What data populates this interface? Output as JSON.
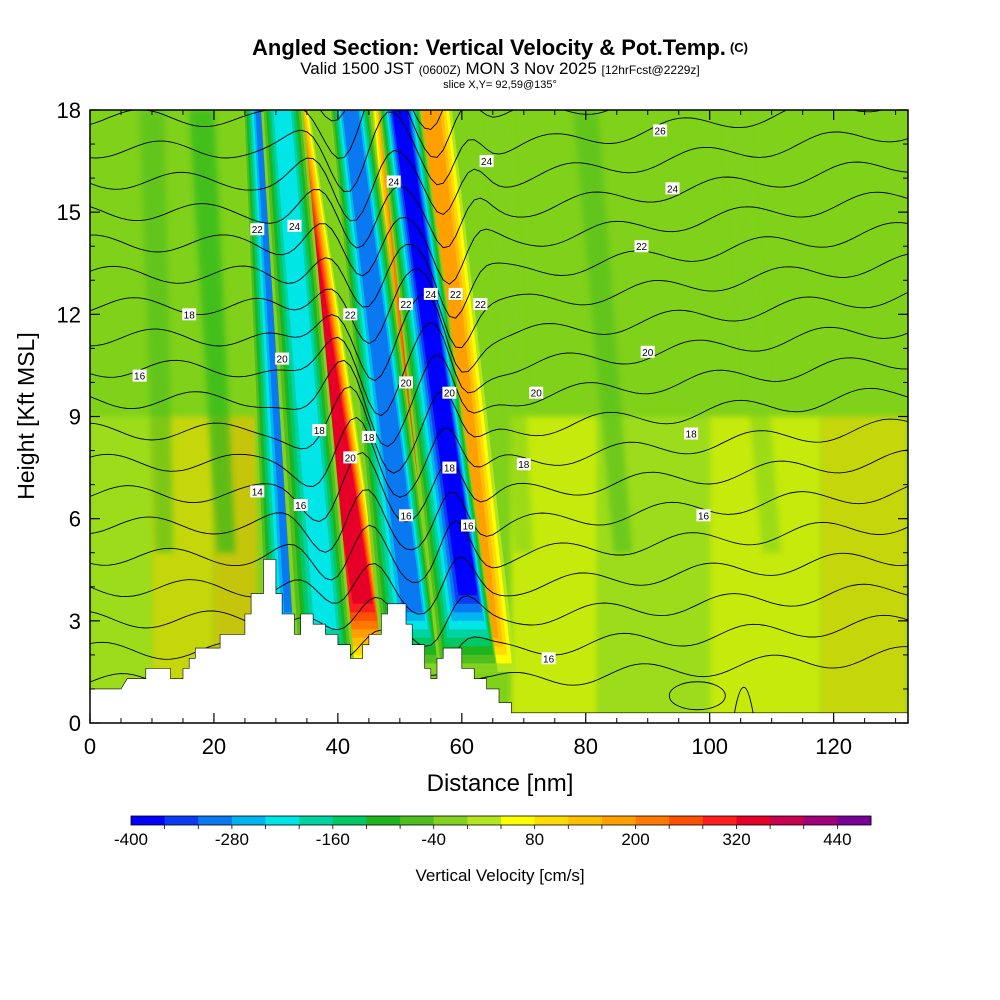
{
  "title": {
    "main": "Angled Section: Vertical Velocity & Pot.Temp.",
    "main_suffix": "(C)",
    "valid_prefix": "Valid 1500 JST",
    "valid_zulu": "(0600Z)",
    "valid_date": "MON 3 Nov 2025",
    "forecast": "[12hrFcst@2229z]",
    "slice": "slice X,Y= 92,59@135°"
  },
  "colors": {
    "terrain": "#ffffff",
    "contour": "#000000",
    "frame": "#000000",
    "background_field": "#7fd11a"
  },
  "chart_data": {
    "type": "heatmap",
    "title": "Angled Section: Vertical Velocity & Pot.Temp.",
    "xlabel": "Distance [nm]",
    "ylabel": "Height [Kft MSL]",
    "xlim": [
      0,
      132
    ],
    "ylim": [
      0,
      18
    ],
    "x_ticks": [
      0,
      20,
      40,
      60,
      80,
      100,
      120
    ],
    "y_ticks": [
      0,
      3,
      6,
      9,
      12,
      15,
      18
    ],
    "colorbar": {
      "label": "Vertical Velocity [cm/s]",
      "min": -400,
      "max": 500,
      "step": 40,
      "tick_labels": [
        "-400",
        "-280",
        "-160",
        "-40",
        "80",
        "200",
        "320",
        "440"
      ],
      "colors": [
        "#0000ff",
        "#0a3cf5",
        "#0a78f0",
        "#00b4f0",
        "#00e6e6",
        "#00d2a0",
        "#00c864",
        "#1eb41e",
        "#50be1e",
        "#82d21e",
        "#b4e61e",
        "#ffff00",
        "#ffdc00",
        "#ffbe00",
        "#ffa000",
        "#ff7800",
        "#ff5000",
        "#ff1e1e",
        "#e60028",
        "#c80050",
        "#a00078",
        "#780096"
      ]
    },
    "updrafts": [
      {
        "x_base": 44,
        "x_top": 32,
        "strength": 380
      },
      {
        "x_base": 57,
        "x_top": 49,
        "strength": 420
      },
      {
        "x_base": 64,
        "x_top": 55,
        "strength": 220
      }
    ],
    "downdrafts": [
      {
        "x_base": 33,
        "x_top": 28,
        "strength": -340
      },
      {
        "x_base": 38,
        "x_top": 31,
        "strength": -250
      },
      {
        "x_base": 52,
        "x_top": 42,
        "strength": -320
      },
      {
        "x_base": 61,
        "x_top": 50,
        "strength": -400
      }
    ],
    "terrain": [
      [
        0,
        1
      ],
      [
        5,
        1
      ],
      [
        6,
        1.3
      ],
      [
        9,
        1.3
      ],
      [
        9,
        1.6
      ],
      [
        13,
        1.6
      ],
      [
        13,
        1.3
      ],
      [
        15,
        1.3
      ],
      [
        15,
        1.6
      ],
      [
        16,
        1.6
      ],
      [
        16,
        1.9
      ],
      [
        17,
        1.9
      ],
      [
        17,
        2.2
      ],
      [
        21,
        2.2
      ],
      [
        21,
        2.6
      ],
      [
        25,
        2.6
      ],
      [
        25,
        3.2
      ],
      [
        26,
        3.2
      ],
      [
        26,
        3.8
      ],
      [
        28,
        3.8
      ],
      [
        28,
        4.8
      ],
      [
        30,
        4.8
      ],
      [
        30,
        3.8
      ],
      [
        31,
        3.8
      ],
      [
        31,
        3.2
      ],
      [
        33,
        3.2
      ],
      [
        33,
        2.6
      ],
      [
        34,
        2.6
      ],
      [
        34,
        3.2
      ],
      [
        36,
        3.2
      ],
      [
        36,
        2.9
      ],
      [
        38,
        2.9
      ],
      [
        38,
        2.6
      ],
      [
        40,
        2.6
      ],
      [
        40,
        2.3
      ],
      [
        42,
        2.3
      ],
      [
        42,
        1.9
      ],
      [
        44,
        1.9
      ],
      [
        44,
        2.3
      ],
      [
        45,
        2.3
      ],
      [
        45,
        2.6
      ],
      [
        47,
        2.6
      ],
      [
        47,
        3.2
      ],
      [
        48,
        3.2
      ],
      [
        48,
        3.5
      ],
      [
        51,
        3.5
      ],
      [
        51,
        2.9
      ],
      [
        52,
        2.9
      ],
      [
        52,
        2.3
      ],
      [
        54,
        2.3
      ],
      [
        54,
        1.6
      ],
      [
        55,
        1.6
      ],
      [
        55,
        1.3
      ],
      [
        56,
        1.3
      ],
      [
        56,
        1.9
      ],
      [
        57,
        1.9
      ],
      [
        57,
        2.2
      ],
      [
        60,
        2.2
      ],
      [
        60,
        1.6
      ],
      [
        62,
        1.6
      ],
      [
        62,
        1.3
      ],
      [
        64,
        1.3
      ],
      [
        64,
        1
      ],
      [
        66,
        1
      ],
      [
        66,
        0.6
      ],
      [
        68,
        0.6
      ],
      [
        68,
        0.3
      ],
      [
        132,
        0.3
      ]
    ],
    "contour_labels": [
      {
        "text": "26",
        "x": 92,
        "y": 17.4
      },
      {
        "text": "24",
        "x": 64,
        "y": 16.5
      },
      {
        "text": "24",
        "x": 94,
        "y": 15.7
      },
      {
        "text": "24",
        "x": 49,
        "y": 15.9
      },
      {
        "text": "24",
        "x": 33,
        "y": 14.6
      },
      {
        "text": "22",
        "x": 27,
        "y": 14.5
      },
      {
        "text": "22",
        "x": 89,
        "y": 14.0
      },
      {
        "text": "24",
        "x": 55,
        "y": 12.6
      },
      {
        "text": "22",
        "x": 59,
        "y": 12.6
      },
      {
        "text": "22",
        "x": 51,
        "y": 12.3
      },
      {
        "text": "22",
        "x": 63,
        "y": 12.3
      },
      {
        "text": "22",
        "x": 42,
        "y": 12.0
      },
      {
        "text": "18",
        "x": 16,
        "y": 12.0
      },
      {
        "text": "20",
        "x": 90,
        "y": 10.9
      },
      {
        "text": "16",
        "x": 8,
        "y": 10.2
      },
      {
        "text": "20",
        "x": 31,
        "y": 10.7
      },
      {
        "text": "20",
        "x": 51,
        "y": 10.0
      },
      {
        "text": "20",
        "x": 58,
        "y": 9.7
      },
      {
        "text": "20",
        "x": 72,
        "y": 9.7
      },
      {
        "text": "18",
        "x": 97,
        "y": 8.5
      },
      {
        "text": "18",
        "x": 37,
        "y": 8.6
      },
      {
        "text": "18",
        "x": 45,
        "y": 8.4
      },
      {
        "text": "20",
        "x": 42,
        "y": 7.8
      },
      {
        "text": "18",
        "x": 58,
        "y": 7.5
      },
      {
        "text": "18",
        "x": 70,
        "y": 7.6
      },
      {
        "text": "14",
        "x": 27,
        "y": 6.8
      },
      {
        "text": "16",
        "x": 34,
        "y": 6.4
      },
      {
        "text": "16",
        "x": 51,
        "y": 6.1
      },
      {
        "text": "16",
        "x": 61,
        "y": 5.8
      },
      {
        "text": "16",
        "x": 99,
        "y": 6.1
      },
      {
        "text": "16",
        "x": 74,
        "y": 1.9
      }
    ]
  }
}
